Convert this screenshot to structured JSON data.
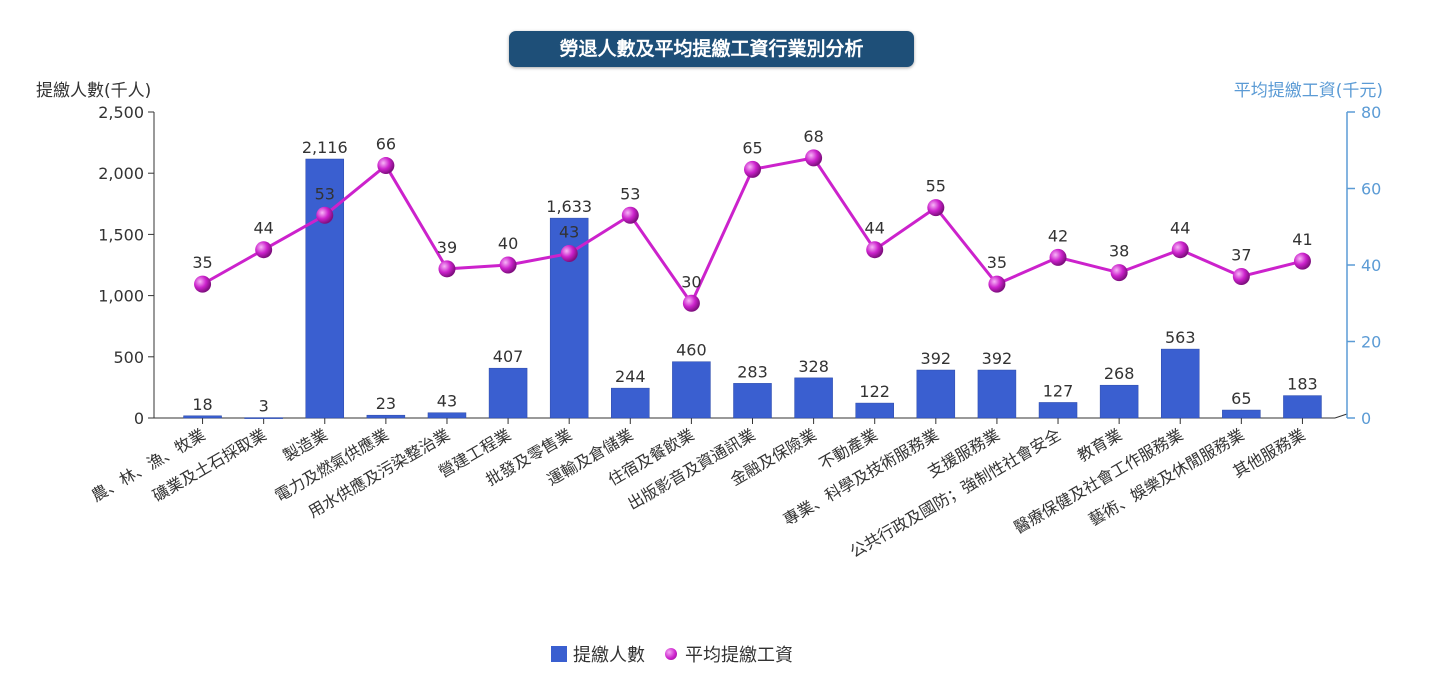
{
  "title": "勞退人數及平均提繳工資行業別分析",
  "colors": {
    "bar": "#3a5fd0",
    "line": "#cc22cc",
    "axis_left": "#333333",
    "axis_right": "#5b9bd5",
    "title_bg": "#1e4f78"
  },
  "legend": {
    "bar_label": "提繳人數",
    "line_label": "平均提繳工資"
  },
  "chart_data": {
    "type": "bar",
    "title": "勞退人數及平均提繳工資行業別分析",
    "categories": [
      "農、林、漁、牧業",
      "礦業及土石採取業",
      "製造業",
      "電力及燃氣供應業",
      "用水供應及污染整治業",
      "營建工程業",
      "批發及零售業",
      "運輸及倉儲業",
      "住宿及餐飲業",
      "出版影音及資通訊業",
      "金融及保險業",
      "不動產業",
      "專業、科學及技術服務業",
      "支援服務業",
      "公共行政及國防；強制性社會安全",
      "教育業",
      "醫療保健及社會工作服務業",
      "藝術、娛樂及休閒服務業",
      "其他服務業"
    ],
    "series": [
      {
        "name": "提繳人數",
        "type": "bar",
        "axis": "left",
        "values": [
          18,
          3,
          2116,
          23,
          43,
          407,
          1633,
          244,
          460,
          283,
          328,
          122,
          392,
          392,
          127,
          268,
          563,
          65,
          183
        ],
        "labels": [
          "18",
          "3",
          "2,116",
          "23",
          "43",
          "407",
          "1,633",
          "244",
          "460",
          "283",
          "328",
          "122",
          "392",
          "392",
          "127",
          "268",
          "563",
          "65",
          "183"
        ]
      },
      {
        "name": "平均提繳工資",
        "type": "line",
        "axis": "right",
        "values": [
          35,
          44,
          53,
          66,
          39,
          40,
          43,
          53,
          30,
          65,
          68,
          44,
          55,
          35,
          42,
          38,
          44,
          37,
          41
        ],
        "labels": [
          "35",
          "44",
          "53",
          "66",
          "39",
          "40",
          "43",
          "53",
          "30",
          "65",
          "68",
          "44",
          "55",
          "35",
          "42",
          "38",
          "44",
          "37",
          "41"
        ]
      }
    ],
    "ylabel": "提繳人數(千人)",
    "y2label": "平均提繳工資(千元)",
    "ylim": [
      0,
      2500
    ],
    "y2lim": [
      0,
      80
    ],
    "yticks": [
      0,
      500,
      1000,
      1500,
      2000,
      2500
    ],
    "ytick_labels": [
      "0",
      "500",
      "1,000",
      "1,500",
      "2,000",
      "2,500"
    ],
    "y2ticks": [
      0,
      20,
      40,
      60,
      80
    ],
    "y2tick_labels": [
      "0",
      "20",
      "40",
      "60",
      "80"
    ],
    "grid": false,
    "legend_position": "bottom"
  }
}
